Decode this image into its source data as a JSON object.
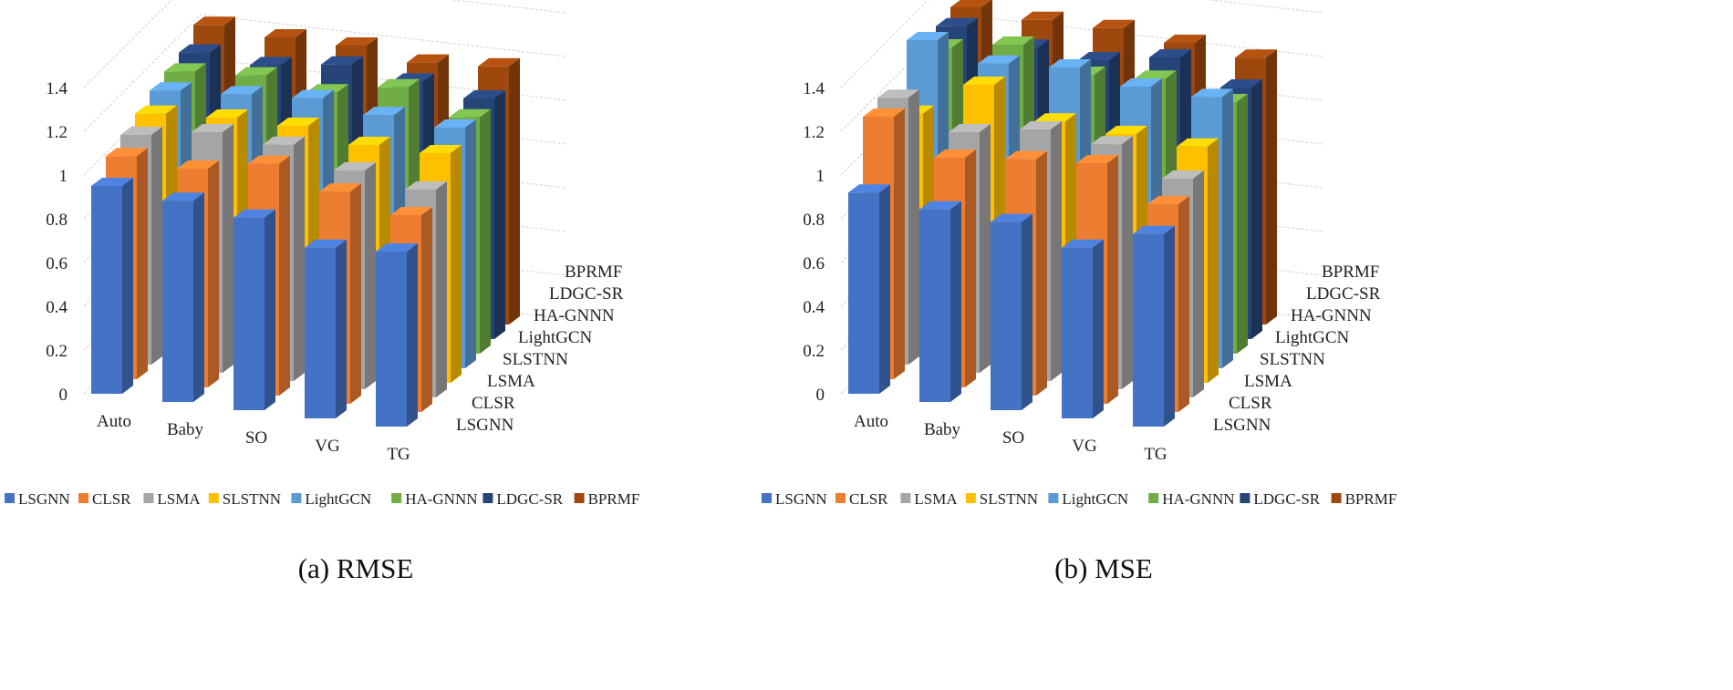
{
  "colors": {
    "LSGNN": "#4472C4",
    "CLSR": "#ED7D31",
    "LSMA": "#A5A5A5",
    "SLSTNN": "#FFC000",
    "LightGCN": "#5B9BD5",
    "HA-GNNN": "#70AD47",
    "LDGC-SR": "#264478",
    "BPRMF": "#9E480E"
  },
  "captions": [
    "(a) RMSE",
    "(b) MSE"
  ],
  "chart_data": [
    {
      "type": "bar",
      "title": "RMSE",
      "categories": [
        "Auto",
        "Baby",
        "SO",
        "VG",
        "TG"
      ],
      "yticks": [
        "0",
        "0.2",
        "0.4",
        "0.6",
        "0.8",
        "1",
        "1.2",
        "1.4"
      ],
      "ylim": [
        0,
        1.4
      ],
      "legend": "bottom",
      "series": [
        {
          "name": "LSGNN",
          "values": [
            0.95,
            0.92,
            0.88,
            0.78,
            0.8
          ]
        },
        {
          "name": "CLSR",
          "values": [
            1.02,
            1.0,
            1.06,
            0.97,
            0.9
          ]
        },
        {
          "name": "LSMA",
          "values": [
            1.05,
            1.1,
            1.08,
            1.0,
            0.95
          ]
        },
        {
          "name": "SLSTNN",
          "values": [
            1.08,
            1.1,
            1.1,
            1.05,
            1.05
          ]
        },
        {
          "name": "LightGCN",
          "values": [
            1.12,
            1.14,
            1.16,
            1.12,
            1.1
          ]
        },
        {
          "name": "HA-GNNN",
          "values": [
            1.14,
            1.16,
            1.12,
            1.18,
            1.08
          ]
        },
        {
          "name": "LDGC-SR",
          "values": [
            1.16,
            1.14,
            1.18,
            1.14,
            1.1
          ]
        },
        {
          "name": "BPRMF",
          "values": [
            1.22,
            1.2,
            1.2,
            1.16,
            1.18
          ]
        }
      ]
    },
    {
      "type": "bar",
      "title": "MSE",
      "categories": [
        "Auto",
        "Baby",
        "SO",
        "VG",
        "TG"
      ],
      "yticks": [
        "0",
        "0.2",
        "0.4",
        "0.6",
        "0.8",
        "1",
        "1.2",
        "1.4"
      ],
      "ylim": [
        0,
        1.4
      ],
      "legend": "bottom",
      "series": [
        {
          "name": "LSGNN",
          "values": [
            0.92,
            0.88,
            0.86,
            0.78,
            0.88
          ]
        },
        {
          "name": "CLSR",
          "values": [
            1.2,
            1.05,
            1.08,
            1.1,
            0.95
          ]
        },
        {
          "name": "LSMA",
          "values": [
            1.22,
            1.1,
            1.15,
            1.12,
            1.0
          ]
        },
        {
          "name": "SLSTNN",
          "values": [
            1.08,
            1.25,
            1.12,
            1.1,
            1.08
          ]
        },
        {
          "name": "LightGCN",
          "values": [
            1.35,
            1.28,
            1.3,
            1.25,
            1.24
          ]
        },
        {
          "name": "HA-GNNN",
          "values": [
            1.25,
            1.3,
            1.2,
            1.22,
            1.15
          ]
        },
        {
          "name": "LDGC-SR",
          "values": [
            1.28,
            1.22,
            1.2,
            1.25,
            1.15
          ]
        },
        {
          "name": "BPRMF",
          "values": [
            1.3,
            1.28,
            1.28,
            1.25,
            1.22
          ]
        }
      ]
    }
  ]
}
